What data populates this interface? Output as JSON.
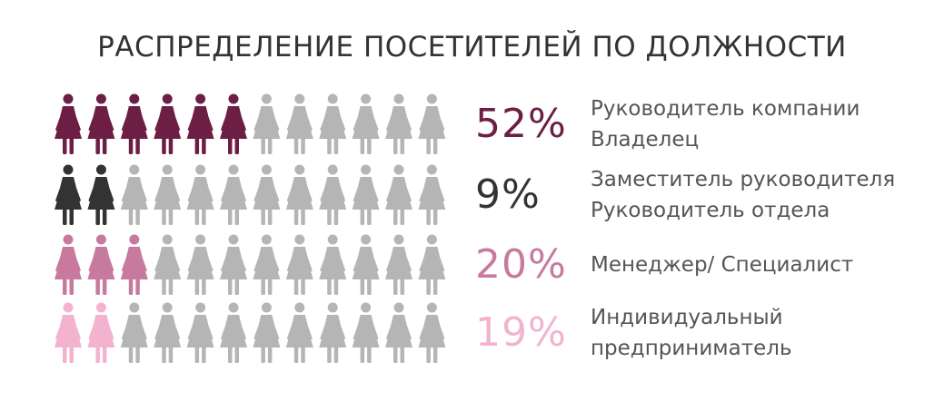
{
  "title": "РАСПРЕДЕЛЕНИЕ ПОСЕТИТЕЛЕЙ ПО ДОЛЖНОСТИ",
  "icons_per_row": 12,
  "inactive_color": "#b5b5b5",
  "icon": "female-person-icon",
  "chart_data": {
    "type": "pictograph",
    "title": "РАСПРЕДЕЛЕНИЕ ПОСЕТИТЕЛЕЙ ПО ДОЛЖНОСТИ",
    "series": [
      {
        "value": 52,
        "pct_label": "52%",
        "label_lines": [
          "Руководитель компании",
          "Владелец"
        ],
        "color": "#6d1e45",
        "highlighted_icons": 6
      },
      {
        "value": 9,
        "pct_label": "9%",
        "label_lines": [
          "Заместитель руководителя",
          "Руководитель отдела"
        ],
        "color": "#333333",
        "highlighted_icons": 2
      },
      {
        "value": 20,
        "pct_label": "20%",
        "label_lines": [
          "Менеджер/ Специалист"
        ],
        "color": "#c77a9e",
        "highlighted_icons": 3
      },
      {
        "value": 19,
        "pct_label": "19%",
        "label_lines": [
          "Индивидуальный",
          "предприниматель"
        ],
        "color": "#f3b3cf",
        "highlighted_icons": 2
      }
    ]
  }
}
